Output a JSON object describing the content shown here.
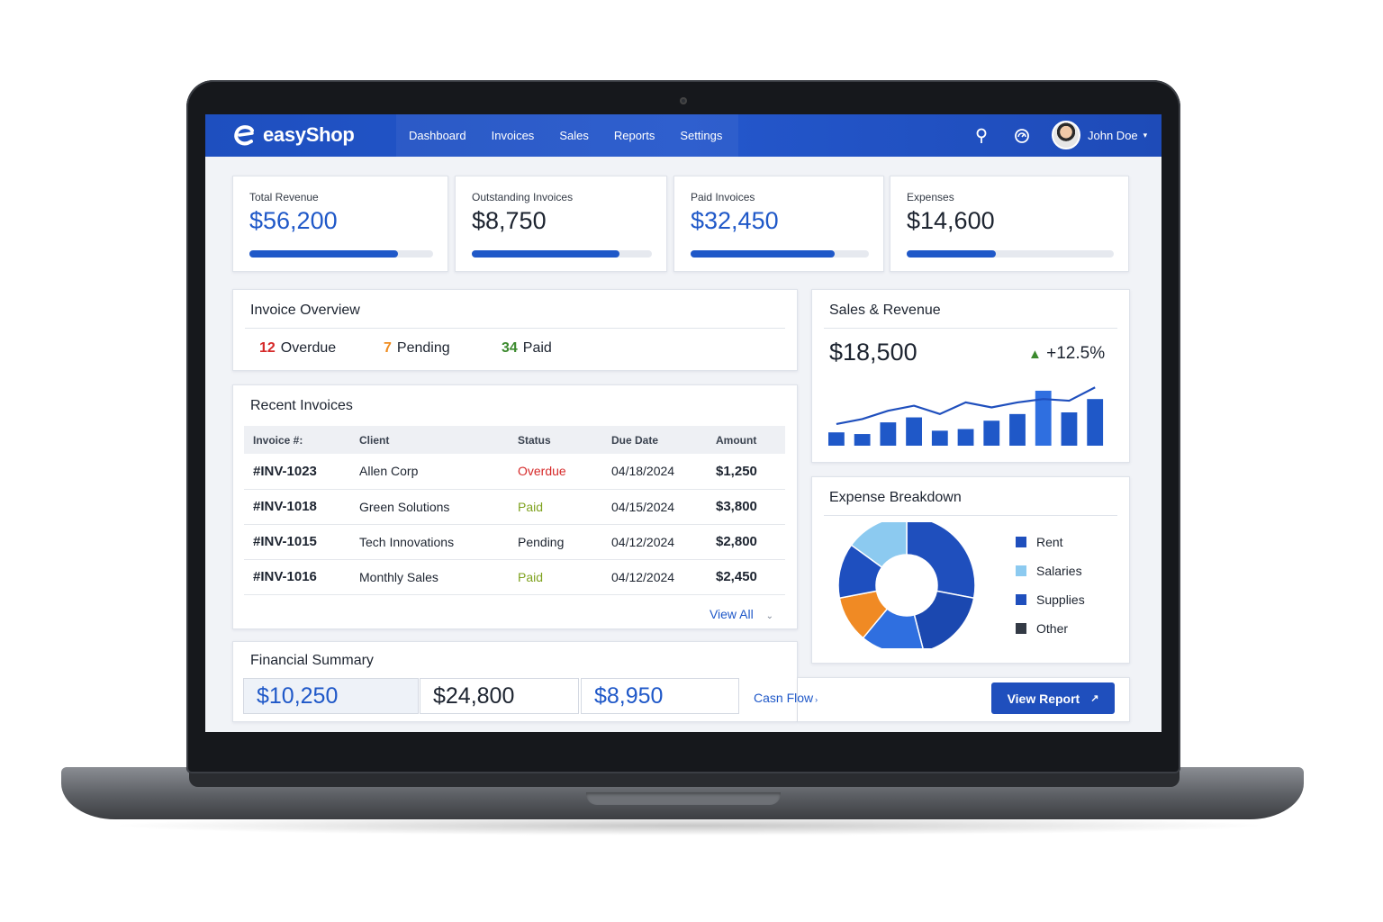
{
  "app": {
    "brand": "easyShop",
    "nav": [
      {
        "label": "Dashboard"
      },
      {
        "label": "Invoices"
      },
      {
        "label": "Sales"
      },
      {
        "label": "Reports"
      },
      {
        "label": "Settings"
      }
    ],
    "user_name": "John Doe"
  },
  "stats": [
    {
      "label": "Total Revenue",
      "value": "$56,200",
      "progress": 0.81,
      "accent": "#1f58c8"
    },
    {
      "label": "Outstanding Invoices",
      "value": "$8,750",
      "progress": 0.82,
      "accent": "#1d2430"
    },
    {
      "label": "Paid Invoices",
      "value": "$32,450",
      "progress": 0.81,
      "accent": "#1f58c8"
    },
    {
      "label": "Expenses",
      "value": "$14,600",
      "progress": 0.43,
      "accent": "#1d2430"
    }
  ],
  "overview": {
    "title": "Invoice Overview",
    "overdue_count": "12",
    "overdue_label": "Overdue",
    "pending_count": "7",
    "pending_label": "Pending",
    "paid_count": "34",
    "paid_label": "Paid",
    "colors": {
      "overdue": "#d62a2a",
      "pending": "#ef8c1f",
      "paid": "#3c8a2e"
    }
  },
  "recent": {
    "title": "Recent Invoices",
    "headers": [
      "Invoice #:",
      "Client",
      "Status",
      "Due Date",
      "Amount"
    ],
    "rows": [
      {
        "id": "#INV-1023",
        "client": "Allen Corp",
        "status": "Overdue",
        "due": "04/18/2024",
        "amount": "$1,250"
      },
      {
        "id": "#INV-1018",
        "client": "Green Solutions",
        "status": "Paid",
        "due": "04/15/2024",
        "amount": "$3,800"
      },
      {
        "id": "#INV-1015",
        "client": "Tech Innovations",
        "status": "Pending",
        "due": "04/12/2024",
        "amount": "$2,800"
      },
      {
        "id": "#INV-1016",
        "client": "Monthly Sales",
        "status": "Paid",
        "due": "04/12/2024",
        "amount": "$2,450"
      }
    ],
    "status_colors": {
      "Overdue": "#d62a2a",
      "Paid": "#7fa21f",
      "Pending": "#1d2430"
    },
    "view_all": "View All"
  },
  "financial": {
    "title": "Financial Summary",
    "values": [
      "$10,250",
      "$24,800",
      "$8,950"
    ],
    "link": "Casn Flow",
    "button": "View Report"
  },
  "sales": {
    "title": "Sales & Revenue",
    "value": "$18,500",
    "change": "+12.5%"
  },
  "chart_data": {
    "type": "bar",
    "series": [
      {
        "kind": "bar",
        "values": [
          8,
          7,
          14,
          17,
          9,
          10,
          15,
          19,
          33,
          20,
          28
        ]
      },
      {
        "kind": "line",
        "values": [
          13,
          16,
          21,
          24,
          19,
          26,
          23,
          26,
          28,
          27,
          35
        ]
      }
    ],
    "ylim": [
      0,
      40
    ],
    "color": "#1f58c8"
  },
  "expense": {
    "title": "Expense Breakdown",
    "slices": [
      {
        "label": "Rent",
        "value": 28,
        "color": "#1f4fbd"
      },
      {
        "label": "",
        "value": 18,
        "color": "#1b48b0"
      },
      {
        "label": "",
        "value": 15,
        "color": "#2f6fe0"
      },
      {
        "label": "",
        "value": 11,
        "color": "#f08a24"
      },
      {
        "label": "",
        "value": 13,
        "color": "#1e4fbf"
      },
      {
        "label": "Salaries",
        "value": 15,
        "color": "#8ccaf0"
      }
    ],
    "legend": [
      {
        "label": "Rent",
        "color": "#1f4fbd"
      },
      {
        "label": "Salaries",
        "color": "#8ccaf0"
      },
      {
        "label": "Supplies",
        "color": "#1f4fbd"
      },
      {
        "label": "Other",
        "color": "#333a45"
      }
    ]
  }
}
